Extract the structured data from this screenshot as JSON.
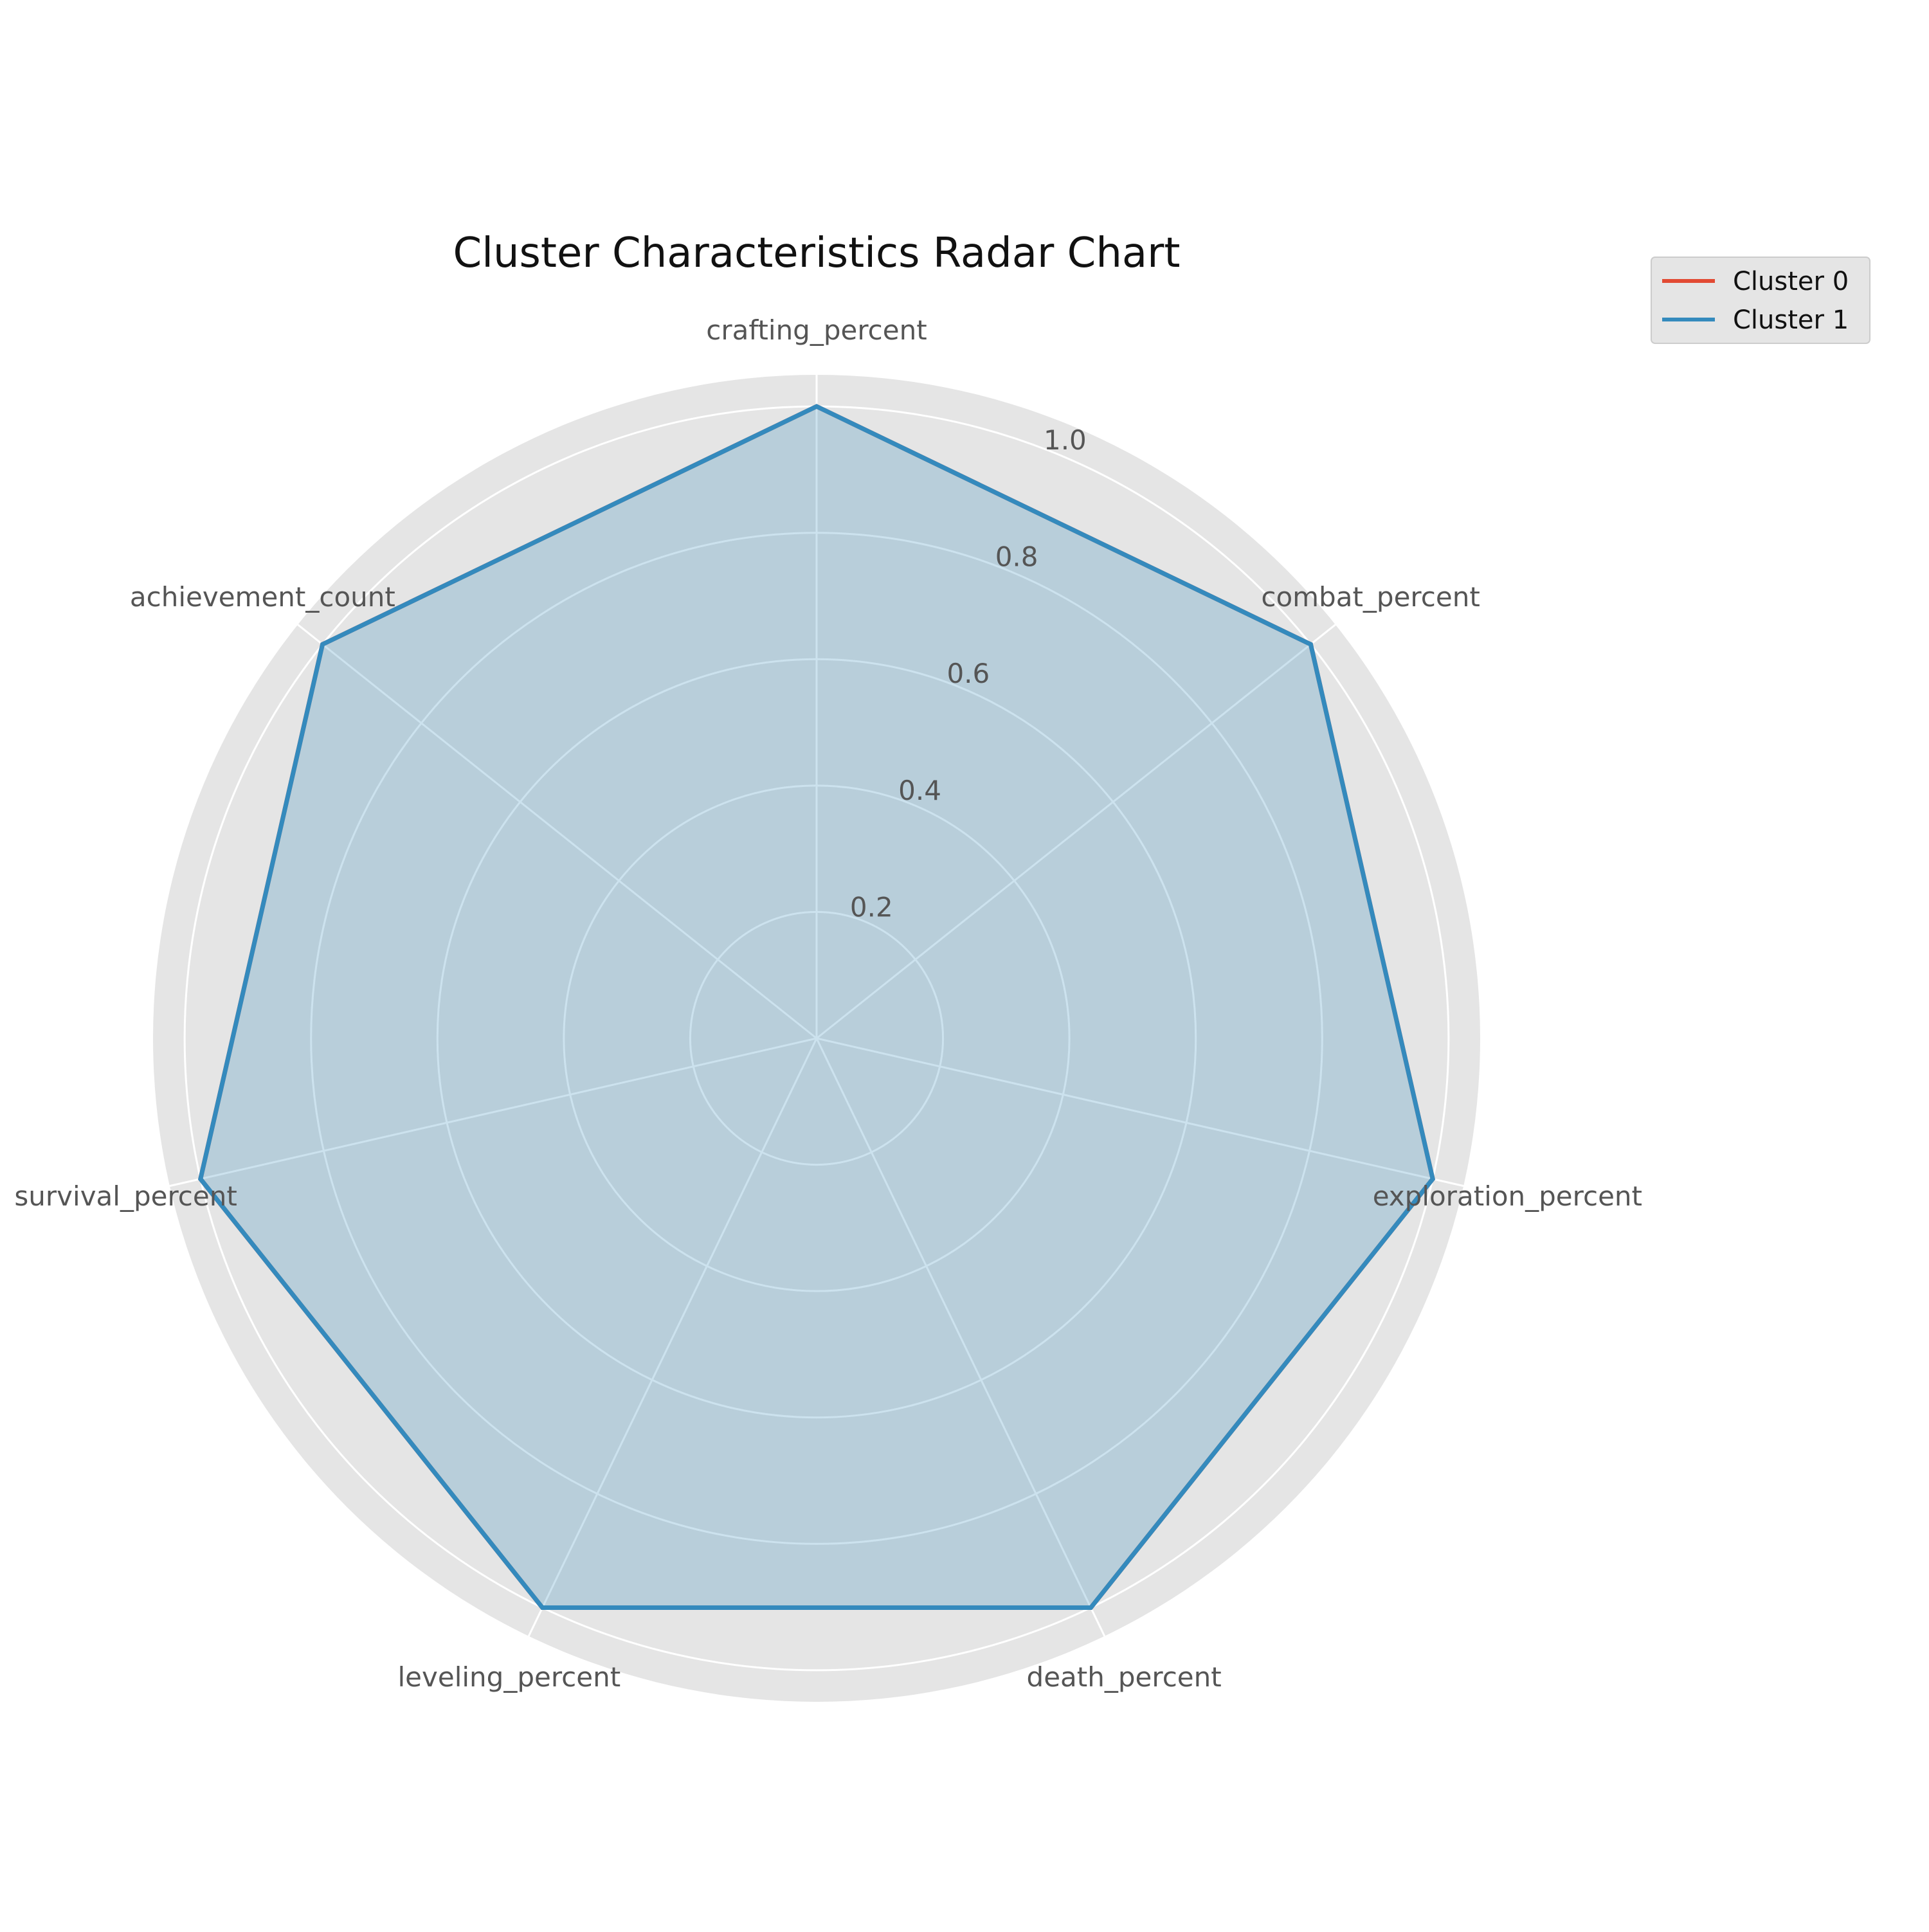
{
  "chart_data": {
    "type": "radar",
    "title": "Cluster Characteristics Radar Chart",
    "axes": [
      "crafting_percent",
      "combat_percent",
      "exploration_percent",
      "death_percent",
      "leveling_percent",
      "survival_percent",
      "achievement_count"
    ],
    "radial_ticks": [
      0.2,
      0.4,
      0.6,
      0.8,
      1.0
    ],
    "radial_tick_labels": [
      "0.2",
      "0.4",
      "0.6",
      "0.8",
      "1.0"
    ],
    "rlim": [
      0,
      1.05
    ],
    "grid": true,
    "legend_position": "top-right",
    "series": [
      {
        "name": "Cluster 0",
        "color": "#E24A33",
        "values": [
          1.0,
          1.0,
          1.0,
          1.0,
          1.0,
          1.0,
          1.0
        ],
        "fill": false
      },
      {
        "name": "Cluster 1",
        "color": "#348ABD",
        "values": [
          1.0,
          1.0,
          1.0,
          1.0,
          1.0,
          1.0,
          1.0
        ],
        "fill": true
      }
    ],
    "colors": {
      "plot_background": "#E5E5E5",
      "grid": "#FFFFFF"
    }
  }
}
